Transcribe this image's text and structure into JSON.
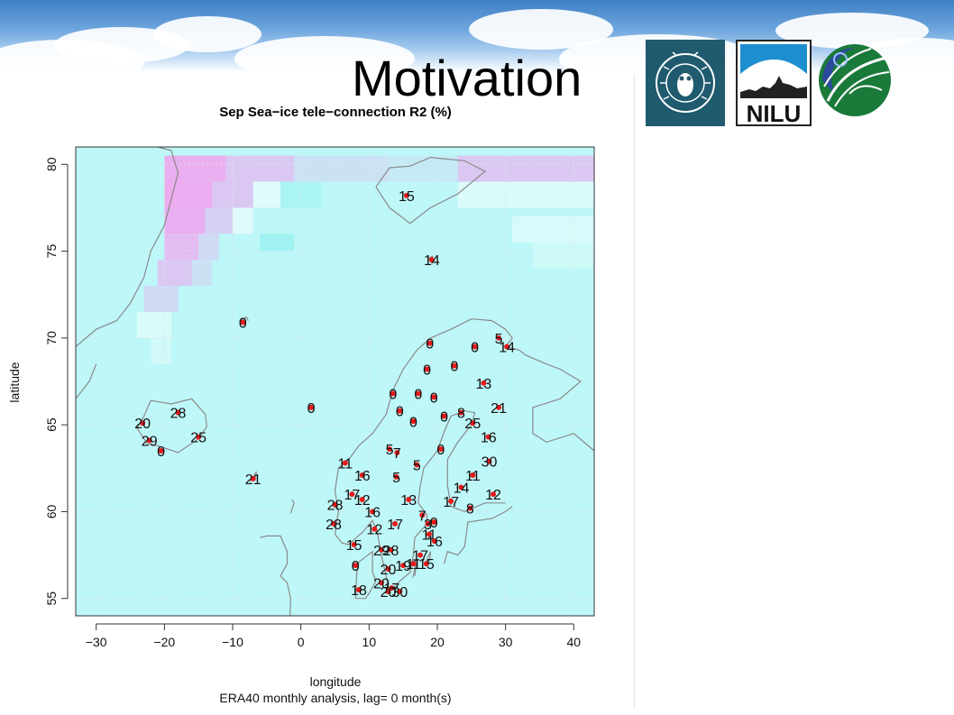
{
  "slide": {
    "title": "Motivation"
  },
  "logos": [
    {
      "name": "universitas-bergensis-seal-icon",
      "text": "UNIVERSITAS BERGENSIS"
    },
    {
      "name": "nilu-logo",
      "text": "NILU"
    },
    {
      "name": "leaf-globe-logo",
      "text": ""
    }
  ],
  "colors": {
    "ocean": "#bef7f7",
    "ice_high": "#f2a2ee",
    "coast": "#8a8a8a",
    "marker": "#e81a1a",
    "sky": "#5c97d6"
  },
  "chart_data": {
    "type": "scatter",
    "title": "Sep Sea−ice tele−connection R2 (%)",
    "xlabel": "longitude",
    "subtitle": "ERA40 monthly analysis, lag= 0 month(s)",
    "ylabel": "latitude",
    "xlim": [
      -33,
      43
    ],
    "ylim": [
      54,
      81
    ],
    "xticks": [
      -30,
      -20,
      -10,
      0,
      10,
      20,
      30,
      40
    ],
    "yticks": [
      55,
      60,
      65,
      70,
      75,
      80
    ],
    "xtick_labels": [
      "−30",
      "−20",
      "−10",
      "0",
      "10",
      "20",
      "30",
      "40"
    ],
    "ytick_labels": [
      "55",
      "60",
      "65",
      "70",
      "75",
      "80"
    ],
    "grid": true,
    "stations": [
      {
        "lon": 15.5,
        "lat": 78.2,
        "r2": "15"
      },
      {
        "lon": 19.2,
        "lat": 74.5,
        "r2": "14"
      },
      {
        "lon": -8.5,
        "lat": 70.9,
        "r2": "0"
      },
      {
        "lon": 29.0,
        "lat": 70.0,
        "r2": "5"
      },
      {
        "lon": 30.2,
        "lat": 69.5,
        "r2": "14"
      },
      {
        "lon": 18.9,
        "lat": 69.7,
        "r2": "0"
      },
      {
        "lon": 25.5,
        "lat": 69.5,
        "r2": "0"
      },
      {
        "lon": 22.5,
        "lat": 68.4,
        "r2": "0"
      },
      {
        "lon": 18.5,
        "lat": 68.2,
        "r2": "0"
      },
      {
        "lon": 26.8,
        "lat": 67.4,
        "r2": "13"
      },
      {
        "lon": 13.5,
        "lat": 66.8,
        "r2": "0"
      },
      {
        "lon": 17.2,
        "lat": 66.8,
        "r2": "0"
      },
      {
        "lon": 19.5,
        "lat": 66.6,
        "r2": "0"
      },
      {
        "lon": 1.5,
        "lat": 66.0,
        "r2": "0"
      },
      {
        "lon": 14.5,
        "lat": 65.8,
        "r2": "0"
      },
      {
        "lon": 29.0,
        "lat": 66.0,
        "r2": "21"
      },
      {
        "lon": 16.5,
        "lat": 65.2,
        "r2": "0"
      },
      {
        "lon": 21.0,
        "lat": 65.5,
        "r2": "0"
      },
      {
        "lon": 23.5,
        "lat": 65.7,
        "r2": "8"
      },
      {
        "lon": 25.2,
        "lat": 65.1,
        "r2": "25"
      },
      {
        "lon": -18.0,
        "lat": 65.7,
        "r2": "28"
      },
      {
        "lon": -23.2,
        "lat": 65.1,
        "r2": "20"
      },
      {
        "lon": -22.2,
        "lat": 64.1,
        "r2": "29"
      },
      {
        "lon": -15.0,
        "lat": 64.3,
        "r2": "25"
      },
      {
        "lon": 27.5,
        "lat": 64.3,
        "r2": "16"
      },
      {
        "lon": -20.5,
        "lat": 63.5,
        "r2": "0"
      },
      {
        "lon": 13.0,
        "lat": 63.6,
        "r2": "5"
      },
      {
        "lon": 14.1,
        "lat": 63.4,
        "r2": "7"
      },
      {
        "lon": 20.5,
        "lat": 63.6,
        "r2": "0"
      },
      {
        "lon": 6.5,
        "lat": 62.8,
        "r2": "11"
      },
      {
        "lon": 17.0,
        "lat": 62.7,
        "r2": "5"
      },
      {
        "lon": 27.6,
        "lat": 62.9,
        "r2": "30"
      },
      {
        "lon": 9.0,
        "lat": 62.1,
        "r2": "16"
      },
      {
        "lon": 14.0,
        "lat": 62.0,
        "r2": "5"
      },
      {
        "lon": 25.2,
        "lat": 62.1,
        "r2": "11"
      },
      {
        "lon": -7.0,
        "lat": 61.9,
        "r2": "21"
      },
      {
        "lon": 23.5,
        "lat": 61.4,
        "r2": "14"
      },
      {
        "lon": 7.5,
        "lat": 61.0,
        "r2": "17"
      },
      {
        "lon": 28.2,
        "lat": 61.0,
        "r2": "12"
      },
      {
        "lon": 9.0,
        "lat": 60.7,
        "r2": "12"
      },
      {
        "lon": 15.8,
        "lat": 60.7,
        "r2": "13"
      },
      {
        "lon": 22.0,
        "lat": 60.6,
        "r2": "17"
      },
      {
        "lon": 5.0,
        "lat": 60.4,
        "r2": "28"
      },
      {
        "lon": 10.5,
        "lat": 60.0,
        "r2": "16"
      },
      {
        "lon": 24.8,
        "lat": 60.2,
        "r2": "8"
      },
      {
        "lon": 17.8,
        "lat": 59.8,
        "r2": "7"
      },
      {
        "lon": 19.5,
        "lat": 59.4,
        "r2": "0"
      },
      {
        "lon": 18.6,
        "lat": 59.3,
        "r2": "3"
      },
      {
        "lon": 4.8,
        "lat": 59.3,
        "r2": "28"
      },
      {
        "lon": 13.8,
        "lat": 59.3,
        "r2": "17"
      },
      {
        "lon": 10.8,
        "lat": 59.0,
        "r2": "12"
      },
      {
        "lon": 18.8,
        "lat": 58.7,
        "r2": "11"
      },
      {
        "lon": 19.6,
        "lat": 58.3,
        "r2": "16"
      },
      {
        "lon": 7.8,
        "lat": 58.1,
        "r2": "15"
      },
      {
        "lon": 11.8,
        "lat": 57.8,
        "r2": "29"
      },
      {
        "lon": 13.2,
        "lat": 57.8,
        "r2": "28"
      },
      {
        "lon": 17.5,
        "lat": 57.5,
        "r2": "17"
      },
      {
        "lon": 18.4,
        "lat": 57.0,
        "r2": "15"
      },
      {
        "lon": 16.5,
        "lat": 57.0,
        "r2": "11"
      },
      {
        "lon": 8.0,
        "lat": 56.9,
        "r2": "0"
      },
      {
        "lon": 15.0,
        "lat": 56.9,
        "r2": "19"
      },
      {
        "lon": 12.8,
        "lat": 56.7,
        "r2": "20"
      },
      {
        "lon": 11.8,
        "lat": 55.9,
        "r2": "20"
      },
      {
        "lon": 13.3,
        "lat": 55.6,
        "r2": "17"
      },
      {
        "lon": 8.5,
        "lat": 55.5,
        "r2": "18"
      },
      {
        "lon": 12.8,
        "lat": 55.4,
        "r2": "20"
      },
      {
        "lon": 14.5,
        "lat": 55.4,
        "r2": "30"
      }
    ]
  }
}
